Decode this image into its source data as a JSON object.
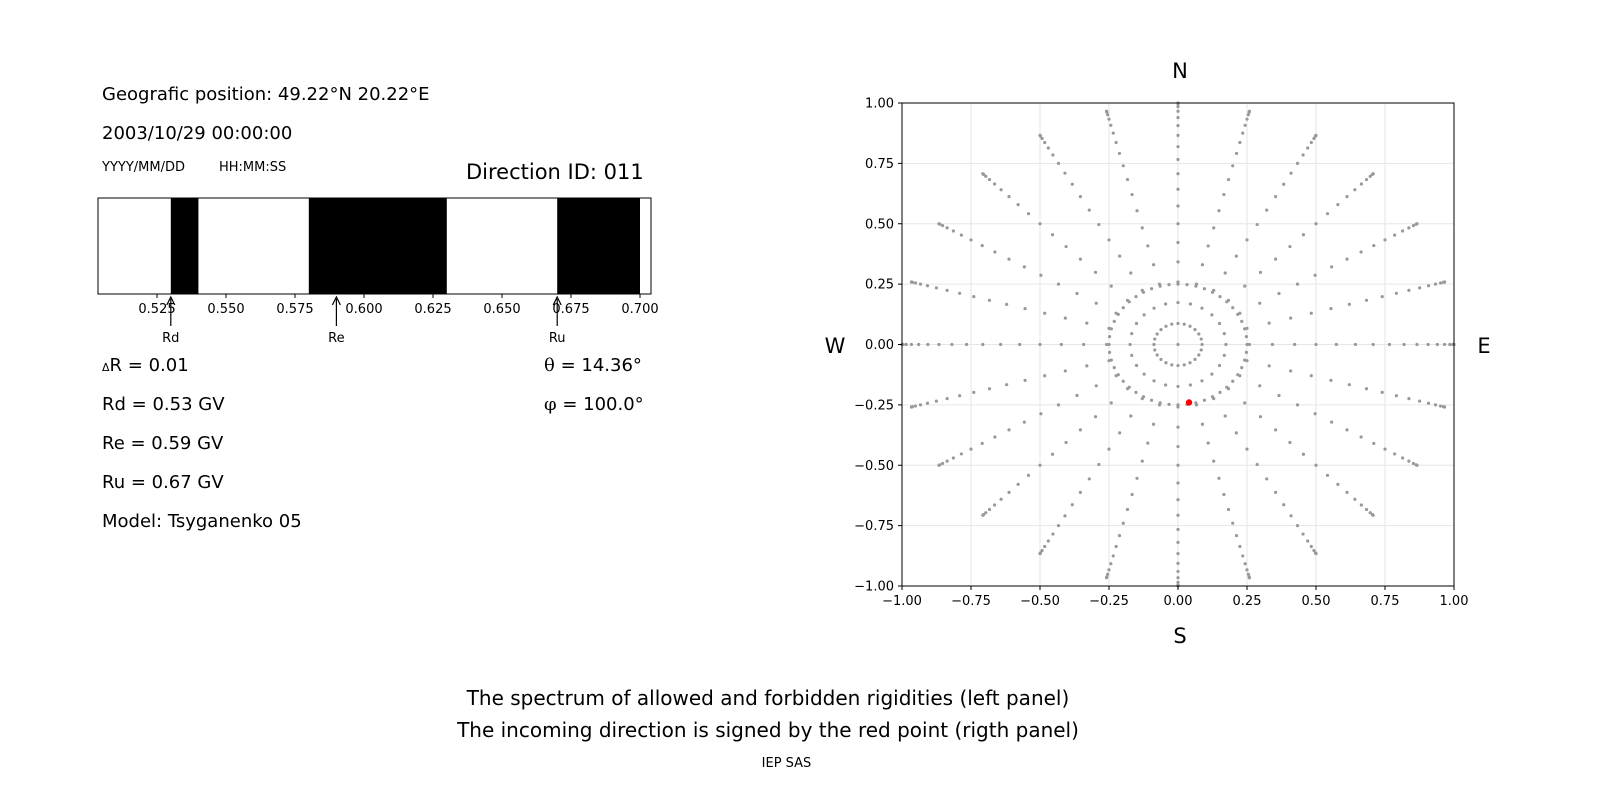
{
  "left_panel": {
    "position": "Geografic position: 49.22°N 20.22°E",
    "datetime": "2003/10/29 00:00:00",
    "date_format": "YYYY/MM/DD",
    "time_format": "HH:MM:SS",
    "direction_id": "Direction ID: 011",
    "delta_r": "R = 0.01",
    "delta_symbol": "Δ",
    "rd": "Rd = 0.53 GV",
    "re": "Re = 0.59 GV",
    "ru": "Ru = 0.67 GV",
    "model": "Model: Tsyganenko 05",
    "theta_symbol": "θ",
    "theta": " = 14.36°",
    "phi_symbol": "φ",
    "phi": " = 100.0°"
  },
  "compass": {
    "n": "N",
    "s": "S",
    "w": "W",
    "e": "E"
  },
  "caption": {
    "line1": "The spectrum of allowed and forbidden rigidities (left panel)",
    "line2": "The incoming direction is signed by the red point (rigth panel)",
    "credit": "IEP SAS"
  },
  "chart_data": [
    {
      "type": "bar",
      "description_of_marks": "rigidity spectrum: black = forbidden, white = allowed",
      "xlim": [
        0.5,
        0.7
      ],
      "ticks": [
        0.525,
        0.55,
        0.575,
        0.6,
        0.625,
        0.65,
        0.675,
        0.7
      ],
      "tick_labels": [
        "0.525",
        "0.550",
        "0.575",
        "0.600",
        "0.625",
        "0.650",
        "0.675",
        "0.700"
      ],
      "forbidden_bands": [
        [
          0.53,
          0.54
        ],
        [
          0.58,
          0.63
        ],
        [
          0.67,
          0.7
        ]
      ],
      "markers": [
        {
          "label": "Rd",
          "value": 0.53
        },
        {
          "label": "Re",
          "value": 0.59
        },
        {
          "label": "Ru",
          "value": 0.67
        }
      ]
    },
    {
      "type": "scatter",
      "xlim": [
        -1.0,
        1.0
      ],
      "ylim": [
        -1.0,
        1.0
      ],
      "ticks": [
        -1.0,
        -0.75,
        -0.5,
        -0.25,
        0.0,
        0.25,
        0.5,
        0.75,
        1.0
      ],
      "tick_labels": [
        "−1.00",
        "−0.75",
        "−0.50",
        "−0.25",
        "0.00",
        "0.25",
        "0.50",
        "0.75",
        "1.00"
      ],
      "grid": true,
      "grid_pattern": {
        "zenith_rings_deg": [
          15,
          30,
          45,
          60,
          75,
          90
        ],
        "azimuth_step_deg": 15,
        "sample_step_deg": 5,
        "color": "#999999"
      },
      "highlight": {
        "x": 0.04,
        "y": -0.24,
        "color": "#ff0000"
      }
    }
  ]
}
